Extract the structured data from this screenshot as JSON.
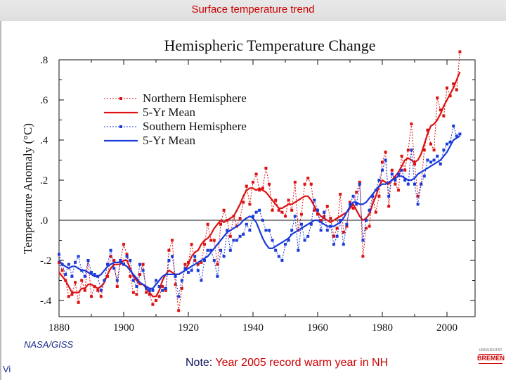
{
  "header": {
    "title": "Surface temperature trend"
  },
  "source": "NASA/GISS",
  "page_mark": "Vi",
  "note": {
    "prefix": "Note:",
    "text": "Year 2005 record warm year in NH"
  },
  "logo": {
    "top_text": "UNIVERSITÄT",
    "word": "BREMEN"
  },
  "colors": {
    "northern": "#dd1111",
    "southern": "#1a3ad9",
    "accent": "#cc0000",
    "header_bg": "#e3e3e3"
  },
  "chart_data": {
    "type": "line",
    "title": "Hemispheric Temperature Change",
    "xlabel": "",
    "ylabel": "Temperature Anomaly (°C)",
    "xlim": [
      1880,
      2005
    ],
    "ylim": [
      -0.45,
      0.8
    ],
    "xticks": [
      1880,
      1900,
      1920,
      1940,
      1960,
      1980,
      2000
    ],
    "ytick_values": [
      -0.4,
      -0.2,
      0.0,
      0.2,
      0.4,
      0.6,
      0.8
    ],
    "ytick_labels": [
      "-.4",
      "-.2",
      ".0",
      ".2",
      ".4",
      ".6",
      ".8"
    ],
    "zero_line": true,
    "legend_position": "top-left",
    "series": [
      {
        "name": "Northern Hemisphere",
        "style": "dashed-markers",
        "color": "#dd1111",
        "x_start": 1880,
        "values": [
          -0.21,
          -0.25,
          -0.3,
          -0.38,
          -0.37,
          -0.31,
          -0.41,
          -0.3,
          -0.35,
          -0.2,
          -0.38,
          -0.33,
          -0.35,
          -0.38,
          -0.3,
          -0.28,
          -0.18,
          -0.2,
          -0.33,
          -0.2,
          -0.12,
          -0.17,
          -0.28,
          -0.36,
          -0.37,
          -0.27,
          -0.22,
          -0.36,
          -0.37,
          -0.42,
          -0.4,
          -0.38,
          -0.33,
          -0.35,
          -0.15,
          -0.1,
          -0.32,
          -0.45,
          -0.34,
          -0.22,
          -0.21,
          -0.12,
          -0.2,
          -0.22,
          -0.21,
          -0.12,
          -0.02,
          -0.1,
          -0.1,
          -0.22,
          -0.02,
          0.05,
          0.0,
          -0.08,
          0.02,
          -0.03,
          0.01,
          0.09,
          0.17,
          0.08,
          0.19,
          0.23,
          0.15,
          0.16,
          0.26,
          0.18,
          0.05,
          0.1,
          0.05,
          0.04,
          0.02,
          0.1,
          0.05,
          0.19,
          -0.05,
          0.03,
          0.18,
          0.21,
          0.18,
          0.05,
          0.03,
          0.0,
          0.02,
          0.07,
          0.01,
          -0.08,
          -0.04,
          0.13,
          -0.06,
          -0.03,
          0.09,
          0.06,
          0.14,
          0.19,
          -0.18,
          -0.04,
          -0.03,
          0.12,
          0.04,
          0.12,
          0.29,
          0.34,
          0.07,
          0.25,
          0.18,
          0.15,
          0.32,
          0.25,
          0.35,
          0.48,
          0.28,
          0.12,
          0.18,
          0.35,
          0.45,
          0.38,
          0.35,
          0.61,
          0.55,
          0.52,
          0.66,
          0.62,
          0.68,
          0.65,
          0.84
        ]
      },
      {
        "name": "5-Yr Mean",
        "style": "solid",
        "color": "#dd1111",
        "x_start": 1880,
        "values": [
          -0.26,
          -0.28,
          -0.3,
          -0.33,
          -0.36,
          -0.36,
          -0.36,
          -0.34,
          -0.34,
          -0.32,
          -0.32,
          -0.33,
          -0.34,
          -0.33,
          -0.31,
          -0.27,
          -0.24,
          -0.22,
          -0.22,
          -0.22,
          -0.2,
          -0.2,
          -0.24,
          -0.28,
          -0.3,
          -0.32,
          -0.32,
          -0.34,
          -0.36,
          -0.38,
          -0.38,
          -0.35,
          -0.3,
          -0.27,
          -0.25,
          -0.26,
          -0.27,
          -0.27,
          -0.26,
          -0.25,
          -0.22,
          -0.18,
          -0.16,
          -0.15,
          -0.12,
          -0.1,
          -0.09,
          -0.07,
          -0.04,
          -0.02,
          0.0,
          -0.01,
          0.0,
          0.01,
          0.02,
          0.05,
          0.08,
          0.12,
          0.15,
          0.16,
          0.16,
          0.15,
          0.16,
          0.15,
          0.14,
          0.12,
          0.1,
          0.08,
          0.06,
          0.06,
          0.07,
          0.08,
          0.08,
          0.09,
          0.1,
          0.11,
          0.12,
          0.12,
          0.1,
          0.07,
          0.04,
          0.02,
          0.01,
          0.0,
          -0.01,
          0.0,
          0.01,
          0.02,
          0.03,
          0.04,
          0.06,
          0.08,
          0.05,
          0.02,
          0.0,
          0.01,
          0.03,
          0.08,
          0.12,
          0.17,
          0.2,
          0.19,
          0.18,
          0.2,
          0.22,
          0.24,
          0.27,
          0.3,
          0.31,
          0.3,
          0.29,
          0.3,
          0.33,
          0.38,
          0.43,
          0.47,
          0.48,
          0.5,
          0.53,
          0.57,
          0.6,
          0.63,
          0.66,
          0.7,
          0.74
        ]
      },
      {
        "name": "Southern Hemisphere",
        "style": "dashed-markers",
        "color": "#1a3ad9",
        "x_start": 1880,
        "values": [
          -0.17,
          -0.22,
          -0.27,
          -0.22,
          -0.28,
          -0.21,
          -0.18,
          -0.25,
          -0.28,
          -0.2,
          -0.26,
          -0.27,
          -0.28,
          -0.35,
          -0.3,
          -0.22,
          -0.15,
          -0.24,
          -0.3,
          -0.2,
          -0.22,
          -0.18,
          -0.2,
          -0.3,
          -0.33,
          -0.22,
          -0.25,
          -0.34,
          -0.35,
          -0.35,
          -0.3,
          -0.33,
          -0.35,
          -0.34,
          -0.2,
          -0.18,
          -0.28,
          -0.38,
          -0.3,
          -0.24,
          -0.26,
          -0.25,
          -0.18,
          -0.25,
          -0.3,
          -0.2,
          -0.15,
          -0.15,
          -0.2,
          -0.28,
          -0.15,
          -0.18,
          -0.05,
          -0.15,
          -0.1,
          -0.1,
          -0.08,
          -0.07,
          -0.02,
          -0.05,
          0.02,
          0.04,
          0.05,
          0.0,
          -0.05,
          -0.05,
          -0.1,
          -0.15,
          -0.18,
          -0.2,
          -0.12,
          -0.1,
          -0.05,
          0.02,
          -0.15,
          -0.02,
          -0.1,
          -0.08,
          -0.02,
          0.1,
          0.05,
          -0.05,
          0.04,
          -0.05,
          -0.03,
          -0.12,
          -0.08,
          0.0,
          -0.12,
          -0.02,
          0.08,
          0.12,
          0.08,
          0.18,
          -0.1,
          0.0,
          0.05,
          0.12,
          0.15,
          0.2,
          0.25,
          0.3,
          0.12,
          0.23,
          0.2,
          0.23,
          0.25,
          0.2,
          0.18,
          0.35,
          0.18,
          0.08,
          0.18,
          0.22,
          0.3,
          0.29,
          0.3,
          0.32,
          0.28,
          0.35,
          0.38,
          0.39,
          0.47,
          0.42,
          0.43
        ]
      },
      {
        "name": "5-Yr Mean",
        "style": "solid",
        "color": "#1a3ad9",
        "x_start": 1880,
        "values": [
          -0.2,
          -0.22,
          -0.23,
          -0.24,
          -0.23,
          -0.23,
          -0.24,
          -0.25,
          -0.25,
          -0.26,
          -0.27,
          -0.28,
          -0.28,
          -0.27,
          -0.25,
          -0.23,
          -0.22,
          -0.21,
          -0.21,
          -0.21,
          -0.22,
          -0.23,
          -0.25,
          -0.27,
          -0.29,
          -0.31,
          -0.32,
          -0.33,
          -0.34,
          -0.34,
          -0.32,
          -0.3,
          -0.28,
          -0.27,
          -0.27,
          -0.27,
          -0.27,
          -0.27,
          -0.26,
          -0.25,
          -0.24,
          -0.23,
          -0.22,
          -0.21,
          -0.2,
          -0.19,
          -0.18,
          -0.16,
          -0.14,
          -0.12,
          -0.1,
          -0.08,
          -0.06,
          -0.05,
          -0.04,
          -0.03,
          -0.02,
          0.0,
          0.01,
          0.02,
          0.01,
          -0.01,
          -0.05,
          -0.09,
          -0.12,
          -0.14,
          -0.14,
          -0.13,
          -0.12,
          -0.11,
          -0.1,
          -0.09,
          -0.07,
          -0.06,
          -0.05,
          -0.04,
          -0.03,
          -0.02,
          -0.01,
          0.0,
          0.0,
          -0.01,
          -0.02,
          -0.03,
          -0.03,
          -0.03,
          -0.02,
          -0.01,
          0.01,
          0.04,
          0.07,
          0.09,
          0.09,
          0.08,
          0.08,
          0.09,
          0.11,
          0.13,
          0.15,
          0.17,
          0.18,
          0.18,
          0.19,
          0.2,
          0.21,
          0.22,
          0.22,
          0.21,
          0.2,
          0.2,
          0.21,
          0.23,
          0.24,
          0.25,
          0.26,
          0.27,
          0.28,
          0.29,
          0.3,
          0.32,
          0.34,
          0.37,
          0.4,
          0.41,
          0.42
        ]
      }
    ]
  }
}
